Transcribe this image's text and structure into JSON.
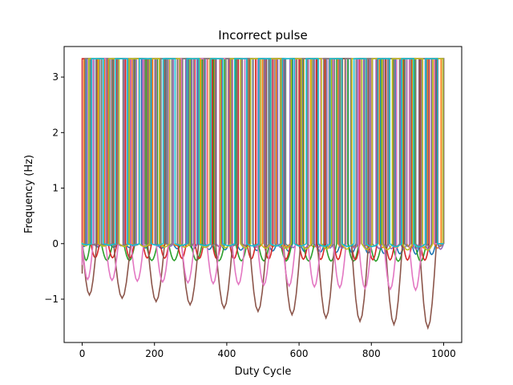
{
  "chart_data": {
    "type": "line",
    "title": "Incorrect pulse",
    "xlabel": "Duty Cycle",
    "ylabel": "Frequency (Hz)",
    "xlim": [
      -50,
      1050
    ],
    "ylim": [
      -1.78,
      3.55
    ],
    "xticks": [
      0,
      200,
      400,
      600,
      800,
      1000
    ],
    "xtick_labels": [
      "0",
      "200",
      "400",
      "600",
      "800",
      "1000"
    ],
    "yticks": [
      -1,
      0,
      1,
      2,
      3
    ],
    "ytick_labels": [
      "−1",
      "0",
      "1",
      "2",
      "3"
    ],
    "grid": false,
    "legend": "none",
    "pulse_high": 3.33,
    "pulse_low": 0,
    "series": [
      {
        "color": "#1f77b4",
        "period": 44,
        "phase": 10,
        "trough_start": -0.05,
        "trough_end": -0.2
      },
      {
        "color": "#ff7f0e",
        "period": 38,
        "phase": 5,
        "trough_start": -0.02,
        "trough_end": -0.08
      },
      {
        "color": "#2ca02c",
        "period": 62,
        "phase": 22,
        "trough_start": -0.3,
        "trough_end": -0.32
      },
      {
        "color": "#d62728",
        "period": 48,
        "phase": 0,
        "trough_start": -0.25,
        "trough_end": -0.3
      },
      {
        "color": "#9467bd",
        "period": 34,
        "phase": 14,
        "trough_start": -0.03,
        "trough_end": -0.1
      },
      {
        "color": "#8c564b",
        "period": 94,
        "phase": 40,
        "trough_start": -0.9,
        "trough_end": -1.53
      },
      {
        "color": "#e377c2",
        "period": 70,
        "phase": 30,
        "trough_start": -0.64,
        "trough_end": -0.85
      },
      {
        "color": "#7f7f7f",
        "period": 30,
        "phase": 8,
        "trough_start": -0.02,
        "trough_end": -0.05
      },
      {
        "color": "#bcbd22",
        "period": 56,
        "phase": 18,
        "trough_start": -0.04,
        "trough_end": -0.12
      },
      {
        "color": "#17becf",
        "period": 66,
        "phase": 26,
        "trough_start": -0.02,
        "trough_end": -0.06
      }
    ]
  }
}
